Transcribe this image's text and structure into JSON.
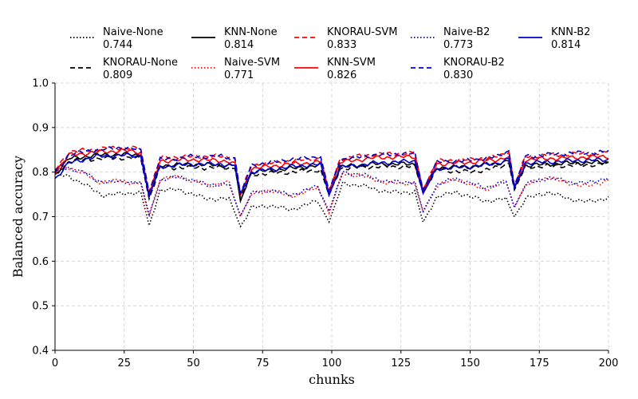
{
  "chart_data": {
    "type": "line",
    "title": "",
    "xlabel": "chunks",
    "ylabel": "Balanced accuracy",
    "xlim": [
      0,
      200
    ],
    "ylim": [
      0.4,
      1.0
    ],
    "xticks": [
      "0",
      "25",
      "50",
      "75",
      "100",
      "125",
      "150",
      "175",
      "200"
    ],
    "yticks": [
      "0.4",
      "0.5",
      "0.6",
      "0.7",
      "0.8",
      "0.9",
      "1.0"
    ],
    "grid": true,
    "legend_position": "top",
    "drift_points": [
      33,
      66,
      99,
      133,
      166
    ],
    "series": [
      {
        "name": "Naive-None",
        "score": "0.744",
        "color": "#000000",
        "style": "dotted",
        "knots": [
          [
            0,
            0.795
          ],
          [
            5,
            0.79
          ],
          [
            10,
            0.775
          ],
          [
            17,
            0.748
          ],
          [
            25,
            0.752
          ],
          [
            31,
            0.755
          ],
          [
            34,
            0.68
          ],
          [
            38,
            0.76
          ],
          [
            45,
            0.76
          ],
          [
            55,
            0.74
          ],
          [
            63,
            0.74
          ],
          [
            67,
            0.678
          ],
          [
            71,
            0.72
          ],
          [
            78,
            0.725
          ],
          [
            85,
            0.715
          ],
          [
            95,
            0.735
          ],
          [
            99,
            0.688
          ],
          [
            104,
            0.775
          ],
          [
            112,
            0.768
          ],
          [
            120,
            0.755
          ],
          [
            130,
            0.755
          ],
          [
            133,
            0.688
          ],
          [
            138,
            0.745
          ],
          [
            145,
            0.755
          ],
          [
            155,
            0.735
          ],
          [
            163,
            0.74
          ],
          [
            166,
            0.7
          ],
          [
            170,
            0.74
          ],
          [
            178,
            0.755
          ],
          [
            186,
            0.74
          ],
          [
            192,
            0.733
          ],
          [
            200,
            0.742
          ]
        ]
      },
      {
        "name": "KNORAU-None",
        "score": "0.809",
        "color": "#000000",
        "style": "dashed",
        "knots": [
          [
            0,
            0.79
          ],
          [
            5,
            0.825
          ],
          [
            15,
            0.83
          ],
          [
            25,
            0.832
          ],
          [
            31,
            0.83
          ],
          [
            34,
            0.74
          ],
          [
            38,
            0.81
          ],
          [
            50,
            0.81
          ],
          [
            60,
            0.81
          ],
          [
            65,
            0.808
          ],
          [
            67,
            0.745
          ],
          [
            71,
            0.795
          ],
          [
            85,
            0.8
          ],
          [
            96,
            0.805
          ],
          [
            99,
            0.748
          ],
          [
            103,
            0.808
          ],
          [
            115,
            0.812
          ],
          [
            130,
            0.812
          ],
          [
            133,
            0.755
          ],
          [
            138,
            0.805
          ],
          [
            150,
            0.8
          ],
          [
            160,
            0.81
          ],
          [
            164,
            0.82
          ],
          [
            166,
            0.76
          ],
          [
            170,
            0.812
          ],
          [
            185,
            0.815
          ],
          [
            200,
            0.818
          ]
        ]
      },
      {
        "name": "KNN-None",
        "score": "0.814",
        "color": "#000000",
        "style": "solid",
        "knots": [
          [
            0,
            0.795
          ],
          [
            5,
            0.83
          ],
          [
            15,
            0.838
          ],
          [
            25,
            0.84
          ],
          [
            31,
            0.838
          ],
          [
            34,
            0.745
          ],
          [
            38,
            0.815
          ],
          [
            50,
            0.818
          ],
          [
            60,
            0.815
          ],
          [
            65,
            0.815
          ],
          [
            67,
            0.735
          ],
          [
            71,
            0.8
          ],
          [
            85,
            0.808
          ],
          [
            96,
            0.815
          ],
          [
            99,
            0.752
          ],
          [
            103,
            0.812
          ],
          [
            115,
            0.818
          ],
          [
            130,
            0.818
          ],
          [
            133,
            0.755
          ],
          [
            138,
            0.81
          ],
          [
            150,
            0.812
          ],
          [
            160,
            0.82
          ],
          [
            164,
            0.825
          ],
          [
            166,
            0.765
          ],
          [
            170,
            0.815
          ],
          [
            185,
            0.82
          ],
          [
            200,
            0.822
          ]
        ]
      },
      {
        "name": "Naive-SVM",
        "score": "0.771",
        "color": "#ff0000",
        "style": "dotted",
        "knots": [
          [
            0,
            0.805
          ],
          [
            5,
            0.81
          ],
          [
            10,
            0.8
          ],
          [
            15,
            0.778
          ],
          [
            22,
            0.78
          ],
          [
            31,
            0.775
          ],
          [
            34,
            0.7
          ],
          [
            38,
            0.785
          ],
          [
            45,
            0.79
          ],
          [
            55,
            0.77
          ],
          [
            63,
            0.775
          ],
          [
            67,
            0.7
          ],
          [
            71,
            0.75
          ],
          [
            78,
            0.76
          ],
          [
            85,
            0.745
          ],
          [
            95,
            0.765
          ],
          [
            99,
            0.708
          ],
          [
            104,
            0.798
          ],
          [
            112,
            0.79
          ],
          [
            120,
            0.775
          ],
          [
            130,
            0.775
          ],
          [
            133,
            0.71
          ],
          [
            138,
            0.77
          ],
          [
            145,
            0.785
          ],
          [
            155,
            0.76
          ],
          [
            163,
            0.778
          ],
          [
            166,
            0.72
          ],
          [
            170,
            0.77
          ],
          [
            178,
            0.788
          ],
          [
            186,
            0.775
          ],
          [
            192,
            0.768
          ],
          [
            200,
            0.782
          ]
        ]
      },
      {
        "name": "KNORAU-SVM",
        "score": "0.833",
        "color": "#ff0000",
        "style": "dashed",
        "knots": [
          [
            0,
            0.805
          ],
          [
            5,
            0.845
          ],
          [
            15,
            0.852
          ],
          [
            25,
            0.855
          ],
          [
            31,
            0.852
          ],
          [
            34,
            0.755
          ],
          [
            38,
            0.832
          ],
          [
            50,
            0.835
          ],
          [
            60,
            0.835
          ],
          [
            65,
            0.83
          ],
          [
            67,
            0.75
          ],
          [
            71,
            0.815
          ],
          [
            85,
            0.825
          ],
          [
            96,
            0.83
          ],
          [
            99,
            0.755
          ],
          [
            103,
            0.83
          ],
          [
            115,
            0.84
          ],
          [
            130,
            0.842
          ],
          [
            133,
            0.76
          ],
          [
            138,
            0.825
          ],
          [
            150,
            0.828
          ],
          [
            160,
            0.835
          ],
          [
            164,
            0.845
          ],
          [
            166,
            0.768
          ],
          [
            170,
            0.835
          ],
          [
            185,
            0.84
          ],
          [
            200,
            0.842
          ]
        ]
      },
      {
        "name": "KNN-SVM",
        "score": "0.826",
        "color": "#ff0000",
        "style": "solid",
        "knots": [
          [
            0,
            0.8
          ],
          [
            5,
            0.838
          ],
          [
            15,
            0.845
          ],
          [
            25,
            0.848
          ],
          [
            31,
            0.845
          ],
          [
            34,
            0.75
          ],
          [
            38,
            0.825
          ],
          [
            50,
            0.828
          ],
          [
            60,
            0.826
          ],
          [
            65,
            0.822
          ],
          [
            67,
            0.748
          ],
          [
            71,
            0.808
          ],
          [
            85,
            0.818
          ],
          [
            96,
            0.822
          ],
          [
            99,
            0.752
          ],
          [
            103,
            0.822
          ],
          [
            115,
            0.832
          ],
          [
            130,
            0.835
          ],
          [
            133,
            0.758
          ],
          [
            138,
            0.818
          ],
          [
            150,
            0.822
          ],
          [
            160,
            0.828
          ],
          [
            164,
            0.835
          ],
          [
            166,
            0.765
          ],
          [
            170,
            0.828
          ],
          [
            185,
            0.832
          ],
          [
            200,
            0.835
          ]
        ]
      },
      {
        "name": "Naive-B2",
        "score": "0.773",
        "color": "#0000cc",
        "style": "dotted",
        "knots": [
          [
            0,
            0.8
          ],
          [
            5,
            0.808
          ],
          [
            10,
            0.802
          ],
          [
            15,
            0.78
          ],
          [
            22,
            0.778
          ],
          [
            31,
            0.778
          ],
          [
            34,
            0.705
          ],
          [
            38,
            0.782
          ],
          [
            45,
            0.79
          ],
          [
            55,
            0.772
          ],
          [
            63,
            0.772
          ],
          [
            67,
            0.702
          ],
          [
            71,
            0.752
          ],
          [
            78,
            0.76
          ],
          [
            85,
            0.748
          ],
          [
            95,
            0.768
          ],
          [
            99,
            0.712
          ],
          [
            104,
            0.8
          ],
          [
            112,
            0.792
          ],
          [
            120,
            0.778
          ],
          [
            130,
            0.778
          ],
          [
            133,
            0.712
          ],
          [
            138,
            0.772
          ],
          [
            145,
            0.785
          ],
          [
            155,
            0.765
          ],
          [
            163,
            0.778
          ],
          [
            166,
            0.722
          ],
          [
            170,
            0.772
          ],
          [
            178,
            0.788
          ],
          [
            186,
            0.778
          ],
          [
            192,
            0.775
          ],
          [
            200,
            0.788
          ]
        ]
      },
      {
        "name": "KNORAU-B2",
        "score": "0.830",
        "color": "#0000cc",
        "style": "dashed",
        "knots": [
          [
            0,
            0.798
          ],
          [
            5,
            0.84
          ],
          [
            15,
            0.85
          ],
          [
            25,
            0.855
          ],
          [
            31,
            0.85
          ],
          [
            34,
            0.755
          ],
          [
            38,
            0.828
          ],
          [
            50,
            0.835
          ],
          [
            60,
            0.835
          ],
          [
            65,
            0.832
          ],
          [
            67,
            0.752
          ],
          [
            71,
            0.815
          ],
          [
            85,
            0.828
          ],
          [
            96,
            0.835
          ],
          [
            99,
            0.758
          ],
          [
            103,
            0.828
          ],
          [
            115,
            0.838
          ],
          [
            130,
            0.842
          ],
          [
            133,
            0.76
          ],
          [
            138,
            0.822
          ],
          [
            150,
            0.826
          ],
          [
            160,
            0.835
          ],
          [
            164,
            0.848
          ],
          [
            166,
            0.77
          ],
          [
            170,
            0.835
          ],
          [
            185,
            0.842
          ],
          [
            200,
            0.845
          ]
        ]
      },
      {
        "name": "KNN-B2",
        "score": "0.814",
        "color": "#0000cc",
        "style": "solid",
        "knots": [
          [
            0,
            0.785
          ],
          [
            5,
            0.82
          ],
          [
            15,
            0.835
          ],
          [
            25,
            0.838
          ],
          [
            31,
            0.835
          ],
          [
            34,
            0.745
          ],
          [
            38,
            0.812
          ],
          [
            50,
            0.818
          ],
          [
            60,
            0.818
          ],
          [
            65,
            0.815
          ],
          [
            67,
            0.752
          ],
          [
            71,
            0.8
          ],
          [
            85,
            0.812
          ],
          [
            96,
            0.818
          ],
          [
            99,
            0.748
          ],
          [
            103,
            0.81
          ],
          [
            115,
            0.82
          ],
          [
            130,
            0.825
          ],
          [
            133,
            0.752
          ],
          [
            138,
            0.808
          ],
          [
            150,
            0.812
          ],
          [
            160,
            0.82
          ],
          [
            164,
            0.83
          ],
          [
            166,
            0.765
          ],
          [
            170,
            0.82
          ],
          [
            185,
            0.825
          ],
          [
            200,
            0.828
          ]
        ]
      }
    ]
  }
}
